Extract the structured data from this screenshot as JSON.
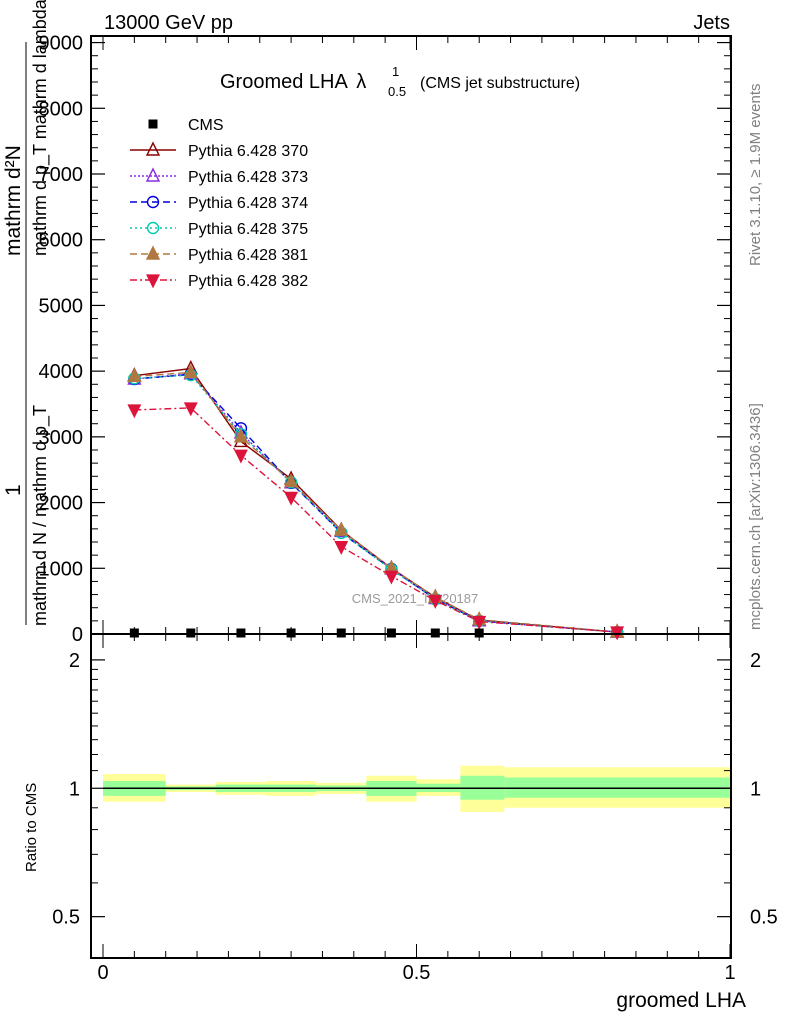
{
  "header": {
    "left": "13000 GeV pp",
    "right": "Jets"
  },
  "side_labels": {
    "rivet": "Rivet 3.1.10, ≥ 1.9M events",
    "mcplots": "mcplots.cern.ch [arXiv:1306.3436]"
  },
  "watermark": "CMS_2021_I1920187",
  "chart_data": [
    {
      "type": "line",
      "title": "Groomed LHA",
      "title_symbol": "λ",
      "title_sup": "1",
      "title_sub": "0.5",
      "subtitle": "(CMS jet substructure)",
      "ylabel_lines": [
        "mathrm d²N",
        "mathrm d p_T mathrm d lambda",
        "1",
        "mathrm d N / mathrm d p_T"
      ],
      "xlim": [
        0,
        1
      ],
      "ylim": [
        0,
        9100
      ],
      "y_ticks": [
        0,
        1000,
        2000,
        3000,
        4000,
        5000,
        6000,
        7000,
        8000,
        9000
      ],
      "y_tick_labels": [
        "0",
        "1000",
        "2000",
        "3000",
        "4000",
        "5000",
        "6000",
        "7000",
        "8000",
        "9000"
      ],
      "legend_position": "top-left",
      "cms": {
        "name": "CMS",
        "x": [
          0.05,
          0.14,
          0.22,
          0.3,
          0.38,
          0.46,
          0.53,
          0.6
        ],
        "y": [
          0,
          0,
          0,
          0,
          0,
          0,
          0,
          0
        ]
      },
      "series": [
        {
          "name": "Pythia 6.428 370",
          "color": "#8b0000",
          "dash": "",
          "marker": "triangle-open",
          "x": [
            0.05,
            0.14,
            0.22,
            0.3,
            0.38,
            0.46,
            0.53,
            0.6,
            0.82
          ],
          "y": [
            3930,
            4040,
            2930,
            2360,
            1580,
            1000,
            560,
            210,
            30
          ]
        },
        {
          "name": "Pythia 6.428 373",
          "color": "#8a2be2",
          "dash": "2,2",
          "marker": "triangle-open",
          "x": [
            0.05,
            0.14,
            0.22,
            0.3,
            0.38,
            0.46,
            0.53,
            0.6,
            0.82
          ],
          "y": [
            3880,
            3960,
            3060,
            2300,
            1560,
            990,
            540,
            200,
            30
          ]
        },
        {
          "name": "Pythia 6.428 374",
          "color": "#0000dd",
          "dash": "7,4",
          "marker": "circle-open",
          "x": [
            0.05,
            0.14,
            0.22,
            0.3,
            0.38,
            0.46,
            0.53,
            0.6,
            0.82
          ],
          "y": [
            3880,
            3950,
            3130,
            2300,
            1540,
            990,
            530,
            200,
            30
          ]
        },
        {
          "name": "Pythia 6.428 375",
          "color": "#00ccaa",
          "dash": "2,3",
          "marker": "circle-open",
          "x": [
            0.05,
            0.14,
            0.22,
            0.3,
            0.38,
            0.46,
            0.53,
            0.6,
            0.82
          ],
          "y": [
            3890,
            3940,
            3040,
            2310,
            1540,
            980,
            530,
            200,
            30
          ]
        },
        {
          "name": "Pythia 6.428 381",
          "color": "#b07840",
          "dash": "7,4",
          "marker": "triangle-filled",
          "x": [
            0.05,
            0.14,
            0.22,
            0.3,
            0.38,
            0.46,
            0.53,
            0.6,
            0.82
          ],
          "y": [
            3920,
            3980,
            3000,
            2320,
            1580,
            1000,
            560,
            220,
            30
          ]
        },
        {
          "name": "Pythia 6.428 382",
          "color": "#dc143c",
          "dash": "7,3,2,3",
          "marker": "triangle-down-filled",
          "x": [
            0.05,
            0.14,
            0.22,
            0.3,
            0.38,
            0.46,
            0.53,
            0.6,
            0.82
          ],
          "y": [
            3410,
            3440,
            2720,
            2080,
            1330,
            880,
            510,
            190,
            30
          ]
        }
      ]
    },
    {
      "type": "area",
      "ylabel": "Ratio to CMS",
      "xlabel": "groomed LHA",
      "xlim": [
        0,
        1
      ],
      "ylim": [
        0.4,
        2.3
      ],
      "log_y": true,
      "x_ticks": [
        0,
        0.5,
        1
      ],
      "x_tick_labels": [
        "0",
        "0.5",
        "1"
      ],
      "y_ticks": [
        0.5,
        1,
        2
      ],
      "y_tick_labels": [
        "0.5",
        "1",
        "2"
      ],
      "bands": {
        "edges": [
          0,
          0.1,
          0.18,
          0.26,
          0.34,
          0.42,
          0.5,
          0.57,
          0.64,
          1.0
        ],
        "yellow": [
          [
            0.93,
            1.08
          ],
          [
            0.98,
            1.02
          ],
          [
            0.965,
            1.035
          ],
          [
            0.96,
            1.04
          ],
          [
            0.97,
            1.03
          ],
          [
            0.93,
            1.07
          ],
          [
            0.96,
            1.05
          ],
          [
            0.88,
            1.13
          ],
          [
            0.9,
            1.12
          ]
        ],
        "green": [
          [
            0.96,
            1.04
          ],
          [
            0.99,
            1.01
          ],
          [
            0.98,
            1.02
          ],
          [
            0.98,
            1.02
          ],
          [
            0.985,
            1.015
          ],
          [
            0.96,
            1.04
          ],
          [
            0.98,
            1.025
          ],
          [
            0.94,
            1.07
          ],
          [
            0.95,
            1.06
          ]
        ]
      }
    }
  ]
}
